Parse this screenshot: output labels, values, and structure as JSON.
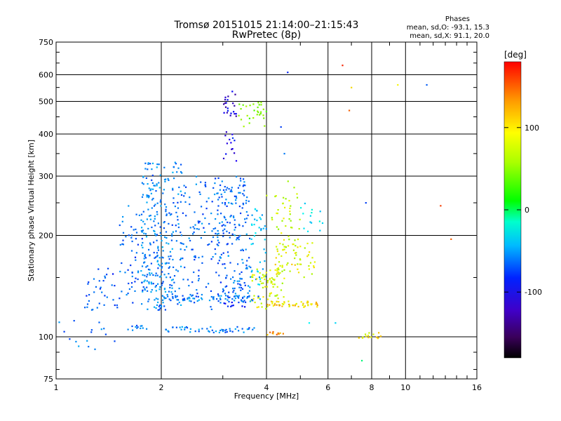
{
  "chart_data": {
    "type": "scatter",
    "title": "Tromsø 20151015 21:14:00–21:15:43",
    "subtitle": "RwPretec (8p)",
    "stats": {
      "heading": "Phases",
      "line1": "mean, sd,O: -93.1, 15.3",
      "line2": "mean, sd,X:  91.1, 20.0"
    },
    "xlabel": "Frequency [MHz]",
    "ylabel": "Stationary phase Virtual Height [km]",
    "xscale": "log",
    "yscale": "log",
    "xlim": [
      1,
      16
    ],
    "ylim": [
      75,
      750
    ],
    "xticks": [
      1,
      2,
      4,
      6,
      8,
      10,
      16
    ],
    "xticklabels": [
      "1",
      "2",
      "4",
      "6",
      "8",
      "10",
      "16"
    ],
    "yticks": [
      75,
      100,
      200,
      300,
      400,
      500,
      600,
      750
    ],
    "yticklabels": [
      "75",
      "100",
      "200",
      "300",
      "400",
      "500",
      "600",
      "750"
    ],
    "grid": true,
    "colorbar": {
      "label": "[deg]",
      "range": [
        -180,
        180
      ],
      "ticks": [
        100,
        0,
        -100
      ],
      "ticklabels": [
        "100",
        "0",
        "-100"
      ],
      "colormap": "rainbow"
    },
    "series": [
      {
        "type": "band",
        "x": [
          1.75,
          2.0
        ],
        "y": [
          120,
          330
        ],
        "phase": -100,
        "n": 170
      },
      {
        "type": "band",
        "x": [
          2.0,
          2.3
        ],
        "y": [
          120,
          330
        ],
        "phase": -100,
        "n": 130
      },
      {
        "type": "band",
        "x": [
          2.3,
          2.9
        ],
        "y": [
          120,
          300
        ],
        "phase": -105,
        "n": 110
      },
      {
        "type": "band",
        "x": [
          2.9,
          3.1
        ],
        "y": [
          125,
          300
        ],
        "phase": -108,
        "n": 70
      },
      {
        "type": "band",
        "x": [
          3.1,
          3.6
        ],
        "y": [
          125,
          300
        ],
        "phase": -102,
        "n": 130
      },
      {
        "type": "band",
        "x": [
          1.5,
          1.8
        ],
        "y": [
          125,
          245
        ],
        "phase": -110,
        "n": 60
      },
      {
        "type": "band",
        "x": [
          1.2,
          1.5
        ],
        "y": [
          120,
          160
        ],
        "phase": -115,
        "n": 35
      },
      {
        "type": "band",
        "x": [
          3.6,
          4.0
        ],
        "y": [
          140,
          240
        ],
        "phase": -80,
        "n": 40
      },
      {
        "type": "band",
        "x": [
          3.6,
          4.5
        ],
        "y": [
          120,
          160
        ],
        "phase": 90,
        "n": 70
      },
      {
        "type": "band",
        "x": [
          4.2,
          5.5
        ],
        "y": [
          150,
          190
        ],
        "phase": 95,
        "n": 60
      },
      {
        "type": "band",
        "x": [
          4.0,
          5.0
        ],
        "y": [
          180,
          290
        ],
        "phase": 85,
        "n": 45
      },
      {
        "type": "band",
        "x": [
          5.0,
          5.8
        ],
        "y": [
          200,
          250
        ],
        "phase": -60,
        "n": 14
      },
      {
        "type": "band",
        "x": [
          3.0,
          3.3
        ],
        "y": [
          450,
          540
        ],
        "phase": -150,
        "n": 22
      },
      {
        "type": "band",
        "x": [
          3.3,
          4.0
        ],
        "y": [
          420,
          500
        ],
        "phase": 60,
        "n": 30
      },
      {
        "type": "band",
        "x": [
          3.0,
          3.3
        ],
        "y": [
          330,
          420
        ],
        "phase": -140,
        "n": 14
      },
      {
        "type": "line",
        "x": [
          2.0,
          3.9
        ],
        "y": 130,
        "phase": -100,
        "n": 55
      },
      {
        "type": "line",
        "x": [
          4.0,
          5.6
        ],
        "y": 125,
        "phase": 110,
        "n": 50
      },
      {
        "type": "line",
        "x": [
          2.0,
          3.7
        ],
        "y": 105,
        "phase": -100,
        "n": 50
      },
      {
        "type": "line",
        "x": [
          1.6,
          1.85
        ],
        "y": 106,
        "phase": -100,
        "n": 12
      },
      {
        "type": "line",
        "x": [
          2.9,
          3.5
        ],
        "y": 125,
        "phase": -140,
        "n": 10
      },
      {
        "type": "line",
        "x": [
          7.3,
          8.6
        ],
        "y": 101,
        "phase": 100,
        "n": 16
      },
      {
        "type": "line",
        "x": [
          4.0,
          4.5
        ],
        "y": 103,
        "phase": 130,
        "n": 10
      },
      {
        "type": "band",
        "x": [
          1.0,
          1.5
        ],
        "y": [
          88,
          115
        ],
        "phase": -100,
        "n": 16
      },
      {
        "type": "scatter",
        "x": [
          6.6,
          6.9,
          7.7,
          9.5,
          11.5,
          12.6,
          13.5,
          6.3,
          5.3,
          4.6,
          4.4,
          4.5,
          7.5,
          7.0
        ],
        "y": [
          640,
          470,
          250,
          560,
          560,
          245,
          195,
          110,
          110,
          610,
          420,
          350,
          85,
          550
        ],
        "phase": [
          170,
          150,
          -120,
          100,
          -110,
          160,
          150,
          -70,
          -60,
          -130,
          -120,
          -100,
          -20,
          110
        ]
      }
    ]
  }
}
